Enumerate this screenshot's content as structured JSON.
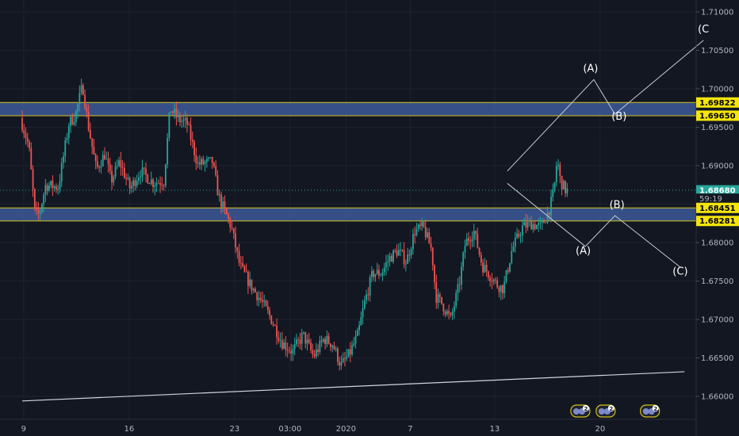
{
  "chart_data": {
    "type": "candlestick",
    "colors": {
      "background": "#131722",
      "up": "#26a69a",
      "down": "#ef5350",
      "zone_fill": "#3d5a99",
      "zone_border": "#d4c21a",
      "grid": "#1e2330",
      "text": "#b2b5be"
    },
    "y_axis": {
      "ticks": [
        "1.71000",
        "1.70500",
        "1.70000",
        "1.69500",
        "1.69000",
        "1.68500",
        "1.68000",
        "1.67500",
        "1.67000",
        "1.66500",
        "1.66000"
      ],
      "range": [
        1.6575,
        1.7115
      ]
    },
    "x_axis": {
      "labels": [
        {
          "text": "9",
          "t": 0.07
        },
        {
          "text": "16",
          "t": 5.07
        },
        {
          "text": "23",
          "t": 10.07
        },
        {
          "text": "03:00",
          "t": 12.7
        },
        {
          "text": "2020",
          "t": 15.35
        },
        {
          "text": "7",
          "t": 18.4
        },
        {
          "text": "13",
          "t": 22.4
        },
        {
          "text": "20",
          "t": 27.4
        }
      ]
    },
    "price_labels": [
      {
        "text": "1.69822",
        "value": 1.69822,
        "style": "zone"
      },
      {
        "text": "1.69650",
        "value": 1.6965,
        "style": "zone"
      },
      {
        "text": "1.68680",
        "value": 1.6868,
        "style": "current"
      },
      {
        "text": "59:19",
        "value": 1.6857,
        "style": "timer"
      },
      {
        "text": "1.68451",
        "value": 1.68451,
        "style": "zone"
      },
      {
        "text": "1.68281",
        "value": 1.68281,
        "style": "zone"
      }
    ],
    "zones": [
      {
        "top": 1.69822,
        "bottom": 1.6965
      },
      {
        "top": 1.68451,
        "bottom": 1.68281
      }
    ],
    "current_price": 1.6868,
    "trendline": {
      "from": {
        "t": 0,
        "value": 1.6594
      },
      "to": {
        "t": 31.4,
        "value": 1.6632
      }
    },
    "price_path": [
      [
        0.0,
        1.6962
      ],
      [
        0.4,
        1.6925
      ],
      [
        0.7,
        1.6835
      ],
      [
        0.9,
        1.6838
      ],
      [
        1.2,
        1.6875
      ],
      [
        1.8,
        1.6872
      ],
      [
        2.3,
        1.6955
      ],
      [
        2.6,
        1.6965
      ],
      [
        2.95,
        1.7005
      ],
      [
        3.2,
        1.6955
      ],
      [
        3.6,
        1.6895
      ],
      [
        4.0,
        1.6915
      ],
      [
        4.3,
        1.688
      ],
      [
        4.7,
        1.6905
      ],
      [
        5.2,
        1.687
      ],
      [
        5.7,
        1.6893
      ],
      [
        6.3,
        1.6878
      ],
      [
        6.8,
        1.688
      ],
      [
        7.1,
        1.6975
      ],
      [
        7.5,
        1.696
      ],
      [
        7.9,
        1.6955
      ],
      [
        8.4,
        1.6902
      ],
      [
        9.1,
        1.6905
      ],
      [
        9.4,
        1.686
      ],
      [
        9.7,
        1.684
      ],
      [
        10.0,
        1.682
      ],
      [
        10.4,
        1.677
      ],
      [
        10.9,
        1.6745
      ],
      [
        11.4,
        1.6725
      ],
      [
        11.9,
        1.67
      ],
      [
        12.4,
        1.667
      ],
      [
        12.9,
        1.6658
      ],
      [
        13.4,
        1.668
      ],
      [
        13.9,
        1.6652
      ],
      [
        14.4,
        1.6675
      ],
      [
        14.8,
        1.6668
      ],
      [
        15.2,
        1.664
      ],
      [
        15.6,
        1.6655
      ],
      [
        16.0,
        1.668
      ],
      [
        16.3,
        1.672
      ],
      [
        16.7,
        1.676
      ],
      [
        17.1,
        1.676
      ],
      [
        17.5,
        1.678
      ],
      [
        17.9,
        1.679
      ],
      [
        18.3,
        1.6775
      ],
      [
        18.7,
        1.6815
      ],
      [
        19.1,
        1.682
      ],
      [
        19.5,
        1.679
      ],
      [
        19.7,
        1.673
      ],
      [
        20.0,
        1.672
      ],
      [
        20.4,
        1.67
      ],
      [
        20.8,
        1.6745
      ],
      [
        21.1,
        1.68
      ],
      [
        21.5,
        1.6815
      ],
      [
        21.9,
        1.677
      ],
      [
        22.2,
        1.676
      ],
      [
        22.6,
        1.6745
      ],
      [
        22.9,
        1.674
      ],
      [
        23.3,
        1.679
      ],
      [
        23.8,
        1.682
      ],
      [
        24.2,
        1.6825
      ],
      [
        24.7,
        1.682
      ],
      [
        25.1,
        1.6845
      ],
      [
        25.3,
        1.6868
      ],
      [
        25.45,
        1.691
      ],
      [
        25.6,
        1.688
      ],
      [
        25.85,
        1.6868
      ]
    ],
    "wave_annotations": [
      {
        "points": [
          [
            23.0,
            1.6893
          ],
          [
            27.1,
            1.7012
          ],
          [
            28.1,
            1.6967
          ],
          [
            32.3,
            1.7063
          ]
        ],
        "labels": [
          {
            "text": "(A)",
            "t": 26.95,
            "value": 1.7022
          },
          {
            "text": "(B)",
            "t": 28.3,
            "value": 1.696
          },
          {
            "text": "(C",
            "t": 32.3,
            "value": 1.7073
          }
        ]
      },
      {
        "points": [
          [
            23.0,
            1.6877
          ],
          [
            26.7,
            1.6795
          ],
          [
            28.1,
            1.6835
          ],
          [
            31.2,
            1.6768
          ]
        ],
        "labels": [
          {
            "text": "(A)",
            "t": 26.6,
            "value": 1.6785
          },
          {
            "text": "(B)",
            "t": 28.2,
            "value": 1.6845
          },
          {
            "text": "(C)",
            "t": 31.2,
            "value": 1.6758
          }
        ]
      }
    ],
    "events": [
      {
        "badge": "2",
        "t": 26.5
      },
      {
        "badge": "2",
        "t": 27.7
      },
      {
        "badge": "2",
        "t": 29.8
      }
    ]
  }
}
